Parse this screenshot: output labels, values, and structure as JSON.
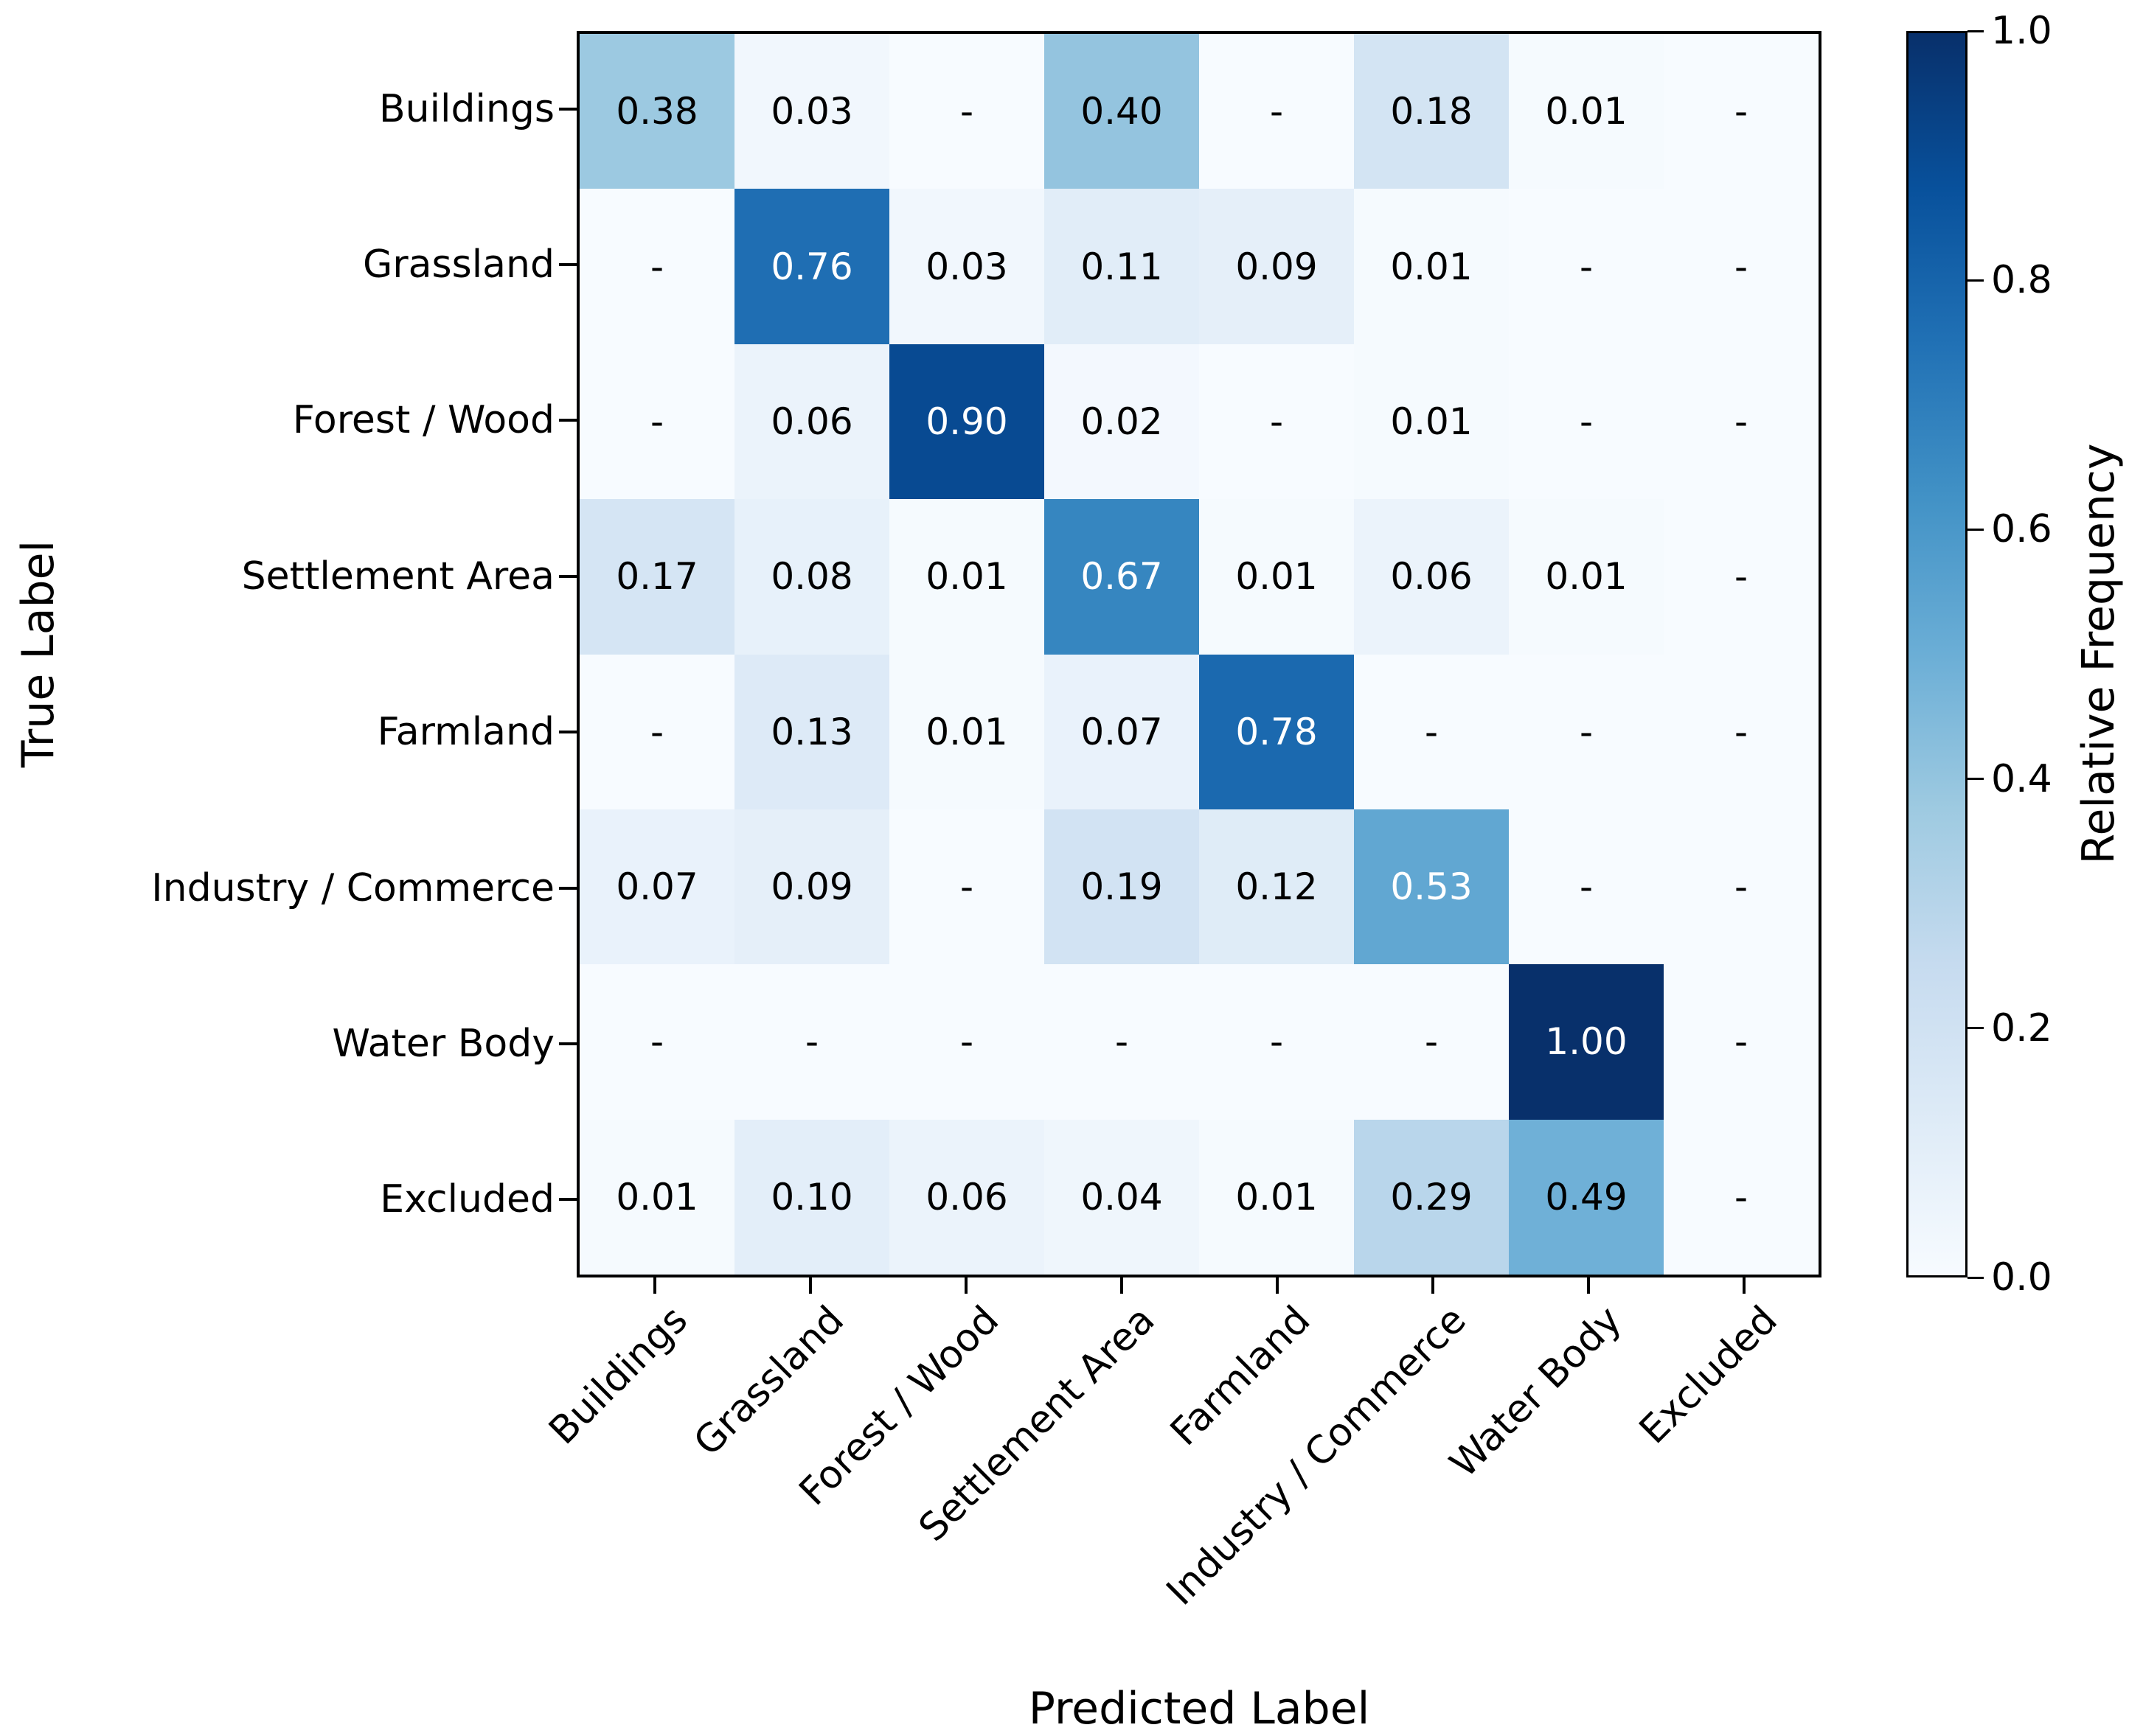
{
  "chart_data": {
    "type": "heatmap",
    "title": "",
    "xlabel": "Predicted Label",
    "ylabel": "True Label",
    "x_categories": [
      "Buildings",
      "Grassland",
      "Forest / Wood",
      "Settlement Area",
      "Farmland",
      "Industry / Commerce",
      "Water Body",
      "Excluded"
    ],
    "y_categories": [
      "Buildings",
      "Grassland",
      "Forest / Wood",
      "Settlement Area",
      "Farmland",
      "Industry / Commerce",
      "Water Body",
      "Excluded"
    ],
    "missing_marker": "-",
    "value_decimals": 2,
    "rows": [
      {
        "true_label": "Buildings",
        "values": [
          0.38,
          0.03,
          null,
          0.4,
          null,
          0.18,
          0.01,
          null
        ]
      },
      {
        "true_label": "Grassland",
        "values": [
          null,
          0.76,
          0.03,
          0.11,
          0.09,
          0.01,
          null,
          null
        ]
      },
      {
        "true_label": "Forest / Wood",
        "values": [
          null,
          0.06,
          0.9,
          0.02,
          null,
          0.01,
          null,
          null
        ]
      },
      {
        "true_label": "Settlement Area",
        "values": [
          0.17,
          0.08,
          0.01,
          0.67,
          0.01,
          0.06,
          0.01,
          null
        ]
      },
      {
        "true_label": "Farmland",
        "values": [
          null,
          0.13,
          0.01,
          0.07,
          0.78,
          null,
          null,
          null
        ]
      },
      {
        "true_label": "Industry / Commerce",
        "values": [
          0.07,
          0.09,
          null,
          0.19,
          0.12,
          0.53,
          null,
          null
        ]
      },
      {
        "true_label": "Water Body",
        "values": [
          null,
          null,
          null,
          null,
          null,
          null,
          1.0,
          null
        ]
      },
      {
        "true_label": "Excluded",
        "values": [
          0.01,
          0.1,
          0.06,
          0.04,
          0.01,
          0.29,
          0.49,
          null
        ]
      }
    ],
    "colorbar": {
      "label": "Relative Frequency",
      "tick_values": [
        0.0,
        0.2,
        0.4,
        0.6,
        0.8,
        1.0
      ],
      "tick_decimals": 1,
      "min": 0.0,
      "max": 1.0,
      "colormap": "Blues",
      "colormap_stops": [
        "#f7fbff",
        "#deebf7",
        "#c6dbef",
        "#9ecae1",
        "#6baed6",
        "#4292c6",
        "#2171b5",
        "#08519c",
        "#08306b"
      ]
    },
    "annotation_text_colors": {
      "low": "#000000",
      "high": "#ffffff",
      "threshold": 0.5
    },
    "axis_color": "#000000",
    "grid": false,
    "legend_position": "right-colorbar"
  }
}
